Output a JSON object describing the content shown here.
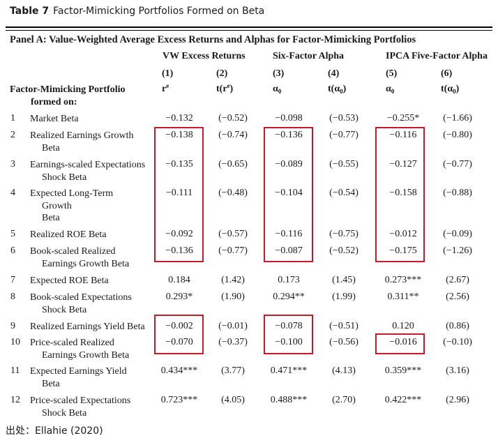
{
  "caption": {
    "label": "Table 7",
    "title": "Factor-Mimicking Portfolios Formed on Beta"
  },
  "panel_title": "Panel A: Value-Weighted Average Excess Returns and Alphas for Factor-Mimicking Portfolios",
  "groups": [
    "VW Excess Returns",
    "Six-Factor Alpha",
    "IPCA Five-Factor Alpha"
  ],
  "col_numbers": [
    "(1)",
    "(2)",
    "(3)",
    "(4)",
    "(5)",
    "(6)"
  ],
  "col_symbols": {
    "c1_base": "r",
    "c1_sup": "e",
    "c2_pre": "t(r",
    "c2_sup": "e",
    "c2_post": ")",
    "c3_base": "α",
    "c3_sub": "0",
    "c4_pre": "t(α",
    "c4_sub": "0",
    "c4_post": ")",
    "c5_base": "α",
    "c5_sub": "0",
    "c6_pre": "t(α",
    "c6_sub": "0",
    "c6_post": ")"
  },
  "row_header": {
    "line1": "Factor-Mimicking Portfolio",
    "line2": "formed on:"
  },
  "rows": [
    {
      "idx": "1",
      "lines": [
        "Market Beta"
      ],
      "vals": [
        "−0.132",
        "(−0.52)",
        "−0.098",
        "(−0.53)",
        "−0.255*",
        "(−1.66)"
      ]
    },
    {
      "idx": "2",
      "lines": [
        "Realized Earnings Growth",
        "Beta"
      ],
      "vals": [
        "−0.138",
        "(−0.74)",
        "−0.136",
        "(−0.77)",
        "−0.116",
        "(−0.80)"
      ]
    },
    {
      "idx": "3",
      "lines": [
        "Earnings-scaled Expectations",
        "Shock Beta"
      ],
      "vals": [
        "−0.135",
        "(−0.65)",
        "−0.089",
        "(−0.55)",
        "−0.127",
        "(−0.77)"
      ]
    },
    {
      "idx": "4",
      "lines": [
        "Expected Long-Term",
        "Growth",
        "Beta"
      ],
      "vals": [
        "−0.111",
        "(−0.48)",
        "−0.104",
        "(−0.54)",
        "−0.158",
        "(−0.88)"
      ]
    },
    {
      "idx": "5",
      "lines": [
        "Realized ROE Beta"
      ],
      "vals": [
        "−0.092",
        "(−0.57)",
        "−0.116",
        "(−0.75)",
        "−0.012",
        "(−0.09)"
      ]
    },
    {
      "idx": "6",
      "lines": [
        "Book-scaled Realized",
        "Earnings Growth Beta"
      ],
      "vals": [
        "−0.136",
        "(−0.77)",
        "−0.087",
        "(−0.52)",
        "−0.175",
        "(−1.26)"
      ]
    },
    {
      "idx": "7",
      "lines": [
        "Expected ROE Beta"
      ],
      "vals": [
        "0.184",
        "(1.42)",
        "0.173",
        "(1.45)",
        "0.273***",
        "(2.67)"
      ]
    },
    {
      "idx": "8",
      "lines": [
        "Book-scaled Expectations",
        "Shock Beta"
      ],
      "vals": [
        "0.293*",
        "(1.90)",
        "0.294**",
        "(1.99)",
        "0.311**",
        "(2.56)"
      ]
    },
    {
      "idx": "9",
      "lines": [
        "Realized Earnings Yield Beta"
      ],
      "vals": [
        "−0.002",
        "(−0.01)",
        "−0.078",
        "(−0.51)",
        "0.120",
        "(0.86)"
      ]
    },
    {
      "idx": "10",
      "lines": [
        "Price-scaled Realized",
        "Earnings Growth Beta"
      ],
      "vals": [
        "−0.070",
        "(−0.37)",
        "−0.100",
        "(−0.56)",
        "−0.016",
        "(−0.10)"
      ]
    },
    {
      "idx": "11",
      "lines": [
        "Expected Earnings Yield",
        "Beta"
      ],
      "vals": [
        "0.434***",
        "(3.77)",
        "0.471***",
        "(4.13)",
        "0.359***",
        "(3.16)"
      ]
    },
    {
      "idx": "12",
      "lines": [
        "Price-scaled Expectations",
        "Shock Beta"
      ],
      "vals": [
        "0.723***",
        "(4.05)",
        "0.488***",
        "(2.70)",
        "0.422***",
        "(2.96)"
      ]
    }
  ],
  "source": "出处：Ellahie (2020)"
}
